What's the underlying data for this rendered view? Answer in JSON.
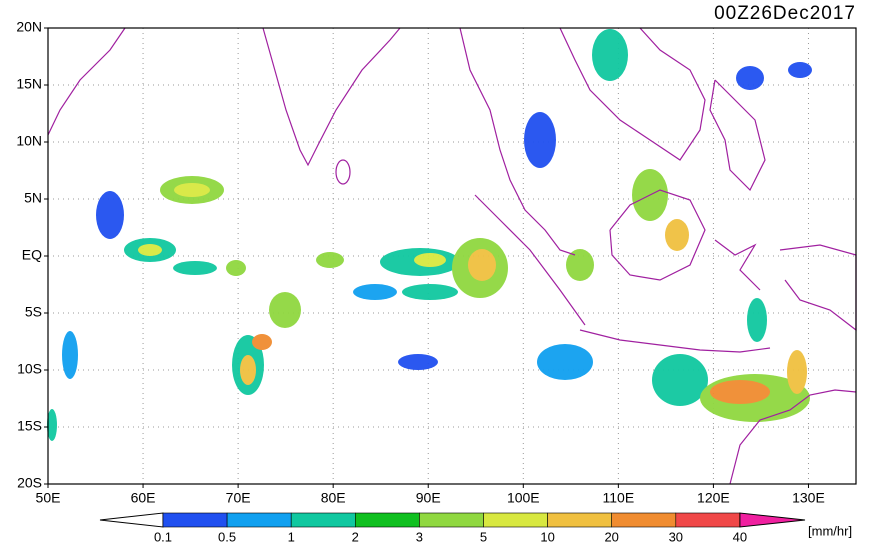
{
  "title": "00Z26Dec2017",
  "lat_labels": [
    "20N",
    "15N",
    "10N",
    "5N",
    "EQ",
    "5S",
    "10S",
    "15S",
    "20S"
  ],
  "lon_labels": [
    "50E",
    "60E",
    "70E",
    "80E",
    "90E",
    "100E",
    "110E",
    "120E",
    "130E"
  ],
  "colorbar": {
    "levels": [
      0.1,
      0.5,
      1,
      2,
      3,
      5,
      10,
      20,
      30,
      40
    ],
    "colors": [
      "#2050f0",
      "#10a0f0",
      "#10c8a0",
      "#10c020",
      "#90d840",
      "#d8e840",
      "#f0c040",
      "#f08c30",
      "#f04848"
    ],
    "low_color": "#ffffff",
    "high_color": "#f020a0",
    "unit": "[mm/hr]"
  }
}
